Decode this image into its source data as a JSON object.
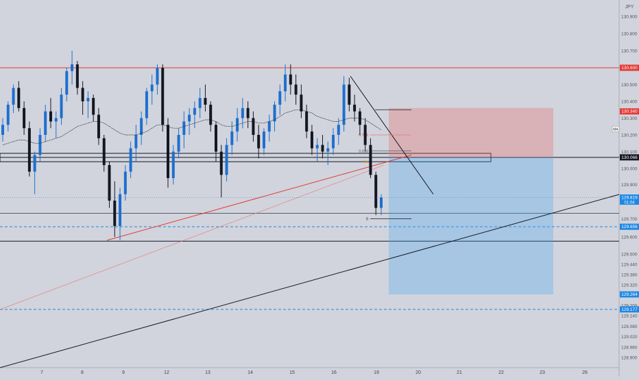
{
  "currency": "JPY",
  "indicator_tag": "MA",
  "chart_data": {
    "type": "candlestick",
    "title": "",
    "xlabel": "",
    "ylabel": "",
    "x_ticks": [
      "7",
      "8",
      "9",
      "12",
      "13",
      "14",
      "15",
      "16",
      "19",
      "20",
      "21",
      "22",
      "23",
      "26"
    ],
    "y_ticks": [
      130.9,
      130.8,
      130.7,
      130.6,
      130.5,
      130.4,
      130.3,
      130.2,
      130.1,
      130.0,
      129.9,
      129.8,
      129.7,
      129.6,
      129.5,
      129.44,
      129.38,
      129.32,
      129.26,
      129.2,
      129.14,
      129.08,
      129.02,
      128.96,
      128.9
    ],
    "price_labels": [
      {
        "value": "130.600",
        "color": "#e53935"
      },
      {
        "value": "130.340",
        "color": "#e53935"
      },
      {
        "value": "130.066",
        "color": "#131722"
      },
      {
        "value": "129.819",
        "color": "#1e88e5",
        "sub": "01:04"
      },
      {
        "value": "129.656",
        "color": "#1e88e5"
      },
      {
        "value": "129.264",
        "color": "#1e88e5"
      },
      {
        "value": "129.177",
        "color": "#1e88e5"
      }
    ],
    "horizontal_levels": [
      {
        "value": 130.6,
        "color": "#e53935",
        "style": "solid"
      },
      {
        "value": 130.066,
        "color": "#131722",
        "style": "solid"
      },
      {
        "value": 129.656,
        "color": "#1e88e5",
        "style": "dashed"
      },
      {
        "value": 129.177,
        "color": "#1e88e5",
        "style": "dashed"
      }
    ],
    "fib_labels": [
      "0.786",
      "0.618",
      "0.5",
      "0"
    ],
    "candles": [
      [
        130.2,
        130.3,
        130.16,
        130.26
      ],
      [
        130.26,
        130.4,
        130.22,
        130.38
      ],
      [
        130.38,
        130.5,
        130.33,
        130.48
      ],
      [
        130.48,
        130.52,
        130.34,
        130.36
      ],
      [
        130.36,
        130.4,
        130.2,
        130.24
      ],
      [
        130.24,
        130.28,
        129.95,
        129.98
      ],
      [
        129.98,
        130.1,
        129.84,
        130.08
      ],
      [
        130.08,
        130.24,
        130.04,
        130.2
      ],
      [
        130.2,
        130.38,
        130.16,
        130.34
      ],
      [
        130.34,
        130.42,
        130.24,
        130.28
      ],
      [
        130.28,
        130.34,
        130.18,
        130.3
      ],
      [
        130.3,
        130.48,
        130.26,
        130.44
      ],
      [
        130.44,
        130.6,
        130.4,
        130.58
      ],
      [
        130.58,
        130.7,
        130.5,
        130.62
      ],
      [
        130.62,
        130.64,
        130.44,
        130.48
      ],
      [
        130.48,
        130.52,
        130.32,
        130.4
      ],
      [
        130.4,
        130.46,
        130.3,
        130.42
      ],
      [
        130.42,
        130.44,
        130.28,
        130.32
      ],
      [
        130.32,
        130.36,
        130.14,
        130.18
      ],
      [
        130.18,
        130.2,
        129.98,
        130.02
      ],
      [
        130.02,
        130.04,
        129.76,
        129.8
      ],
      [
        129.8,
        129.92,
        129.6,
        129.66
      ],
      [
        129.66,
        129.88,
        129.58,
        129.84
      ],
      [
        129.84,
        130.02,
        129.8,
        129.98
      ],
      [
        129.98,
        130.16,
        129.94,
        130.12
      ],
      [
        130.12,
        130.26,
        130.04,
        130.2
      ],
      [
        130.2,
        130.34,
        130.14,
        130.3
      ],
      [
        130.3,
        130.48,
        130.26,
        130.46
      ],
      [
        130.46,
        130.56,
        130.38,
        130.5
      ],
      [
        130.5,
        130.62,
        130.44,
        130.6
      ],
      [
        130.6,
        130.62,
        130.22,
        130.26
      ],
      [
        130.26,
        130.3,
        129.88,
        129.94
      ],
      [
        129.94,
        130.14,
        129.9,
        130.1
      ],
      [
        130.1,
        130.24,
        130.06,
        130.2
      ],
      [
        130.2,
        130.34,
        130.12,
        130.28
      ],
      [
        130.28,
        130.36,
        130.2,
        130.32
      ],
      [
        130.32,
        130.4,
        130.24,
        130.36
      ],
      [
        130.36,
        130.48,
        130.3,
        130.42
      ],
      [
        130.42,
        130.5,
        130.34,
        130.38
      ],
      [
        130.38,
        130.4,
        130.22,
        130.26
      ],
      [
        130.26,
        130.28,
        130.04,
        130.1
      ],
      [
        130.1,
        130.14,
        129.82,
        129.96
      ],
      [
        129.96,
        130.18,
        129.92,
        130.14
      ],
      [
        130.14,
        130.28,
        130.08,
        130.22
      ],
      [
        130.22,
        130.36,
        130.16,
        130.3
      ],
      [
        130.3,
        130.42,
        130.24,
        130.36
      ],
      [
        130.36,
        130.4,
        130.24,
        130.3
      ],
      [
        130.3,
        130.34,
        130.16,
        130.2
      ],
      [
        130.2,
        130.26,
        130.06,
        130.12
      ],
      [
        130.12,
        130.24,
        130.08,
        130.22
      ],
      [
        130.22,
        130.32,
        130.16,
        130.28
      ],
      [
        130.28,
        130.4,
        130.22,
        130.38
      ],
      [
        130.38,
        130.5,
        130.32,
        130.46
      ],
      [
        130.46,
        130.62,
        130.4,
        130.56
      ],
      [
        130.56,
        130.62,
        130.44,
        130.5
      ],
      [
        130.5,
        130.56,
        130.38,
        130.44
      ],
      [
        130.44,
        130.5,
        130.3,
        130.34
      ],
      [
        130.34,
        130.38,
        130.18,
        130.22
      ],
      [
        130.22,
        130.26,
        130.08,
        130.12
      ],
      [
        130.12,
        130.18,
        130.04,
        130.14
      ],
      [
        130.14,
        130.2,
        130.06,
        130.1
      ],
      [
        130.1,
        130.16,
        130.02,
        130.12
      ],
      [
        130.12,
        130.24,
        130.08,
        130.2
      ],
      [
        130.2,
        130.3,
        130.14,
        130.26
      ],
      [
        130.26,
        130.55,
        130.22,
        130.5
      ],
      [
        130.5,
        130.54,
        130.34,
        130.38
      ],
      [
        130.38,
        130.44,
        130.28,
        130.34
      ],
      [
        130.34,
        130.36,
        130.2,
        130.26
      ],
      [
        130.26,
        130.3,
        130.1,
        130.14
      ],
      [
        130.14,
        130.18,
        129.94,
        129.96
      ],
      [
        129.96,
        129.98,
        129.72,
        129.76
      ],
      [
        129.76,
        129.84,
        129.72,
        129.82
      ]
    ],
    "moving_average": [
      130.14,
      130.15,
      130.16,
      130.17,
      130.17,
      130.16,
      130.15,
      130.15,
      130.16,
      130.17,
      130.18,
      130.19,
      130.21,
      130.23,
      130.25,
      130.26,
      130.27,
      130.28,
      130.28,
      130.27,
      130.25,
      130.23,
      130.21,
      130.2,
      130.2,
      130.2,
      130.21,
      130.22,
      130.24,
      130.26,
      130.26,
      130.25,
      130.24,
      130.24,
      130.25,
      130.26,
      130.27,
      130.28,
      130.29,
      130.29,
      130.28,
      130.26,
      130.25,
      130.25,
      130.26,
      130.27,
      130.28,
      130.28,
      130.27,
      130.27,
      130.28,
      130.29,
      130.31,
      130.33,
      130.34,
      130.35,
      130.35,
      130.34,
      130.33,
      130.31,
      130.3,
      130.29,
      130.28,
      130.28,
      130.29,
      130.3,
      130.3,
      130.3,
      130.29,
      130.27,
      130.25,
      130.23
    ]
  }
}
